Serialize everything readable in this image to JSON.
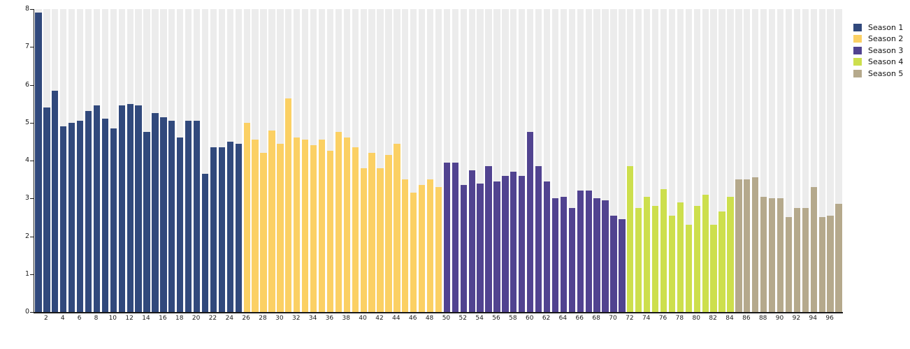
{
  "chart_data": {
    "type": "bar",
    "title": "",
    "xlabel": "",
    "ylabel": "",
    "ylim": [
      0,
      8
    ],
    "yticks": [
      0,
      1,
      2,
      3,
      4,
      5,
      6,
      7,
      8
    ],
    "x_tick_labels": [
      2,
      4,
      6,
      8,
      10,
      12,
      14,
      16,
      18,
      20,
      22,
      24,
      26,
      28,
      30,
      32,
      34,
      36,
      38,
      40,
      42,
      44,
      46,
      48,
      50,
      52,
      54,
      56,
      58,
      60,
      62,
      64,
      66,
      68,
      70,
      72,
      74,
      76,
      78,
      80,
      82,
      84,
      86,
      88,
      90,
      92,
      94,
      96
    ],
    "n_bars": 97,
    "grid": "vertical light-gray band behind every bar slot",
    "legend_position": "top-right outside plot",
    "background_band_color": "#ececec",
    "series": [
      {
        "name": "Season 1",
        "color": "#31497c",
        "x_start": 1,
        "values": [
          7.9,
          5.4,
          5.85,
          4.9,
          5.0,
          5.05,
          5.3,
          5.45,
          5.1,
          4.85,
          5.45,
          5.5,
          5.45,
          4.75,
          5.25,
          5.15,
          5.05,
          4.6,
          5.05,
          5.05,
          3.65,
          4.35,
          4.35,
          4.5,
          4.45
        ]
      },
      {
        "name": "Season 2",
        "color": "#fbd064",
        "x_start": 26,
        "values": [
          5.0,
          4.55,
          4.2,
          4.8,
          4.45,
          5.65,
          4.6,
          4.55,
          4.4,
          4.55,
          4.25,
          4.75,
          4.6,
          4.35,
          3.8,
          4.2,
          3.8,
          4.15,
          4.45,
          3.5,
          3.15,
          3.35,
          3.5,
          3.3
        ]
      },
      {
        "name": "Season 3",
        "color": "#514390",
        "x_start": 50,
        "values": [
          3.95,
          3.95,
          3.35,
          3.75,
          3.4,
          3.85,
          3.45,
          3.6,
          3.7,
          3.6,
          4.75,
          3.85,
          3.45,
          3.0,
          3.05,
          2.75,
          3.2,
          3.2,
          3.0,
          2.95,
          2.55,
          2.45
        ]
      },
      {
        "name": "Season 4",
        "color": "#cddf4d",
        "x_start": 72,
        "values": [
          3.85,
          2.75,
          3.05,
          2.8,
          3.25,
          2.55,
          2.9,
          2.3,
          2.8,
          3.1,
          2.3,
          2.65,
          3.05
        ]
      },
      {
        "name": "Season 5",
        "color": "#b5a98c",
        "x_start": 85,
        "values": [
          3.5,
          3.5,
          3.55,
          3.05,
          3.0,
          3.0,
          2.5,
          2.75,
          2.75,
          3.3,
          2.5,
          2.55,
          2.85
        ]
      }
    ]
  },
  "legend": {
    "items": [
      {
        "label": "Season 1",
        "color": "#31497c"
      },
      {
        "label": "Season 2",
        "color": "#fbd064"
      },
      {
        "label": "Season 3",
        "color": "#514390"
      },
      {
        "label": "Season 4",
        "color": "#cddf4d"
      },
      {
        "label": "Season 5",
        "color": "#b5a98c"
      }
    ]
  }
}
